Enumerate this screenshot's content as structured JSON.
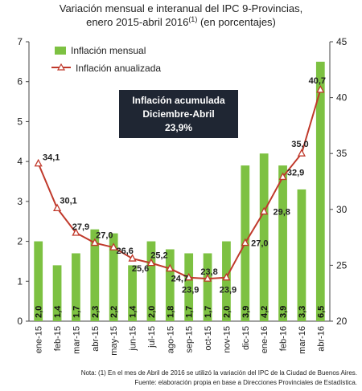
{
  "chart_data": {
    "type": "bar",
    "title": "Variación mensual e interanual del IPC 9-Provincias,",
    "subtitle": "enero 2015-abril 2016",
    "subtitle_superscript": "(1)",
    "subtitle_suffix": "(en porcentajes)",
    "categories": [
      "ene-15",
      "feb-15",
      "mar-15",
      "abr-15",
      "may-15",
      "jun-15",
      "jul-15",
      "ago-15",
      "sep-15",
      "oct-15",
      "nov-15",
      "dic-15",
      "ene-16",
      "feb-16",
      "mar-16",
      "abr-16"
    ],
    "series": [
      {
        "name": "Inflación mensual",
        "type": "bar",
        "axis": "left",
        "color": "#7dc142",
        "values": [
          2.0,
          1.4,
          1.7,
          2.3,
          2.2,
          1.4,
          2.0,
          1.8,
          1.7,
          1.7,
          2.0,
          3.9,
          4.2,
          3.9,
          3.3,
          6.5
        ],
        "labels": [
          "2,0",
          "1,4",
          "1,7",
          "2,3",
          "2,2",
          "1,4",
          "2,0",
          "1,8",
          "1,7",
          "1,7",
          "2,0",
          "3,9",
          "4,2",
          "3,9",
          "3,3",
          "6,5"
        ]
      },
      {
        "name": "Inflación anualizada",
        "type": "line",
        "axis": "right",
        "color": "#c0392b",
        "values": [
          34.1,
          30.1,
          27.9,
          27.0,
          26.6,
          25.6,
          25.2,
          24.7,
          23.9,
          23.8,
          23.9,
          27.0,
          29.8,
          32.9,
          35.0,
          40.7
        ],
        "labels": [
          "34,1",
          "30,1",
          "27,9",
          "27,0",
          "26,6",
          "25,6",
          "25,2",
          "24,7",
          "23,9",
          "23,8",
          "23,9",
          "27,0",
          "29,8",
          "32,9",
          "35,0",
          "40,7"
        ]
      }
    ],
    "y_left": {
      "lim": [
        0,
        7
      ],
      "ticks": [
        "0",
        "1",
        "2",
        "3",
        "4",
        "5",
        "6",
        "7"
      ]
    },
    "y_right": {
      "lim": [
        20,
        45
      ],
      "ticks": [
        "20",
        "25",
        "30",
        "35",
        "40",
        "45"
      ]
    },
    "grid": false,
    "legend_position": "top-left",
    "annotation": {
      "lines": [
        "Inflación acumulada",
        "Diciembre-Abril",
        "23,9%"
      ],
      "background": "#1f2633"
    },
    "notes": [
      "Nota: (1) En el mes de Abril de 2016 se utilizó la variación del IPC de la Ciudad de Buenos Aires.",
      "Fuente: elaboración propia en base a Direcciones Provinciales de Estadística."
    ]
  }
}
